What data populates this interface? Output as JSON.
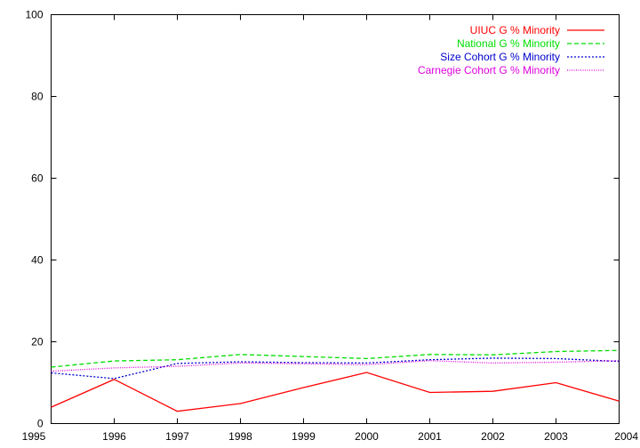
{
  "chart_data": {
    "type": "line",
    "title": "",
    "xlabel": "",
    "ylabel": "",
    "x": [
      1995,
      1996,
      1997,
      1998,
      1999,
      2000,
      2001,
      2002,
      2003,
      2004
    ],
    "xlim": [
      1995,
      2004
    ],
    "ylim": [
      0,
      100
    ],
    "x_ticks": [
      "1995",
      "1996",
      "1997",
      "1998",
      "1999",
      "2000",
      "2001",
      "2002",
      "2003",
      "2004"
    ],
    "y_ticks": [
      "0",
      "20",
      "40",
      "60",
      "80",
      "100"
    ],
    "grid": false,
    "legend_position": "top-right",
    "series": [
      {
        "name": "UIUC G % Minority",
        "color": "#ff0000",
        "dash": "solid",
        "values": [
          4.0,
          10.8,
          3.0,
          4.9,
          8.8,
          12.5,
          7.6,
          7.9,
          10.0,
          5.5
        ]
      },
      {
        "name": "National G % Minority",
        "color": "#00dd00",
        "dash": "dashed",
        "values": [
          13.8,
          15.3,
          15.6,
          16.9,
          16.4,
          15.9,
          16.9,
          16.8,
          17.6,
          17.9
        ]
      },
      {
        "name": "Size Cohort G % Minority",
        "color": "#0000cc",
        "dash": "dotted",
        "values": [
          12.4,
          11.0,
          14.7,
          15.1,
          14.9,
          14.8,
          15.6,
          16.0,
          15.9,
          15.2
        ]
      },
      {
        "name": "Carnegie Cohort G % Minority",
        "color": "#dd00dd",
        "dash": "fine-dotted",
        "values": [
          12.8,
          13.6,
          14.0,
          14.8,
          14.6,
          14.4,
          15.4,
          14.8,
          15.0,
          15.4
        ]
      }
    ]
  }
}
